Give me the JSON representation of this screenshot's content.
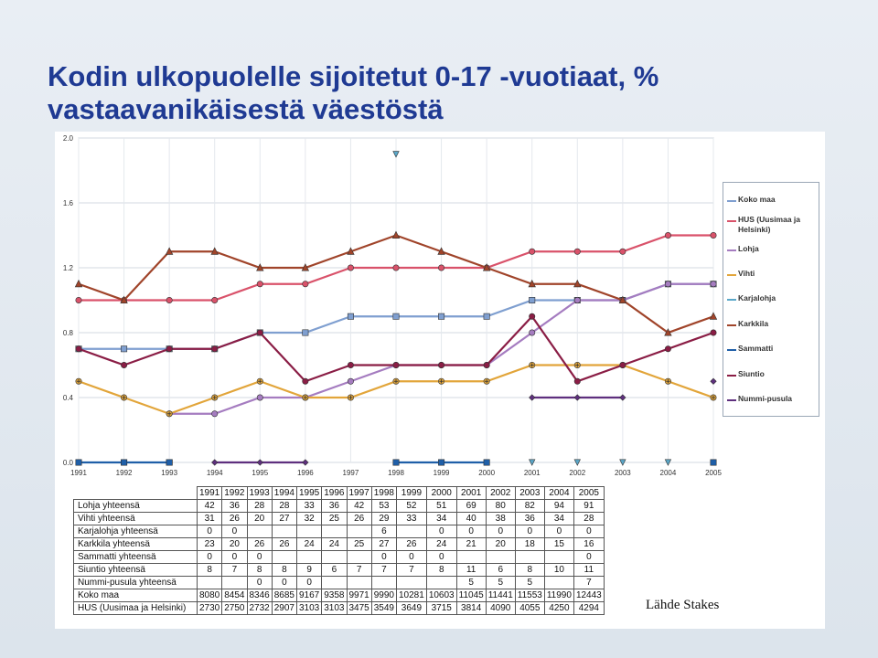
{
  "title": {
    "line1": "Kodin ulkopuolelle sijoitetut 0-17  -vuotiaat, %",
    "line2": "vastaavanikäisestä väestöstä"
  },
  "chart_data": {
    "type": "line",
    "x": [
      "1991",
      "1992",
      "1993",
      "1994",
      "1995",
      "1996",
      "1997",
      "1998",
      "1999",
      "2000",
      "2001",
      "2002",
      "2003",
      "2004",
      "2005"
    ],
    "y_ticks": [
      "0.0",
      "0.4",
      "0.8",
      "1.2",
      "1.6",
      "2.0"
    ],
    "ylim": [
      0,
      2.0
    ],
    "grid": true,
    "legend_position": "right",
    "series": [
      {
        "name": "Koko maa",
        "color": "#7f9fd0",
        "marker": "square",
        "values": [
          0.7,
          0.7,
          0.7,
          0.7,
          0.8,
          0.8,
          0.9,
          0.9,
          0.9,
          0.9,
          1.0,
          1.0,
          1.0,
          1.1,
          1.1
        ]
      },
      {
        "name": "HUS (Uusimaa ja Helsinki)",
        "color": "#d9526a",
        "marker": "circle",
        "values": [
          1.0,
          1.0,
          1.0,
          1.0,
          1.1,
          1.1,
          1.2,
          1.2,
          1.2,
          1.2,
          1.3,
          1.3,
          1.3,
          1.4,
          1.4
        ]
      },
      {
        "name": "Lohja",
        "color": "#a57cc0",
        "marker": "circle",
        "values": [
          null,
          null,
          0.3,
          0.3,
          0.4,
          0.4,
          0.5,
          0.6,
          0.6,
          0.6,
          0.8,
          1.0,
          1.0,
          1.1,
          1.1
        ]
      },
      {
        "name": "Vihti",
        "color": "#e2a53a",
        "marker": "plus",
        "values": [
          0.5,
          0.4,
          0.3,
          0.4,
          0.5,
          0.4,
          0.4,
          0.5,
          0.5,
          0.5,
          0.6,
          0.6,
          0.6,
          0.5,
          0.4
        ]
      },
      {
        "name": "Karjalohja",
        "color": "#5aa7c9",
        "marker": "tri-down",
        "values": [
          null,
          null,
          null,
          null,
          null,
          null,
          null,
          1.9,
          null,
          null,
          null,
          null,
          null,
          null,
          null
        ]
      },
      {
        "name": "Karkkila",
        "color": "#a0442a",
        "marker": "triangle",
        "values": [
          1.1,
          1.0,
          1.3,
          1.3,
          1.2,
          1.2,
          1.3,
          1.4,
          1.3,
          1.2,
          1.1,
          1.1,
          1.0,
          0.8,
          0.9
        ]
      },
      {
        "name": "Sammatti",
        "color": "#1f5fa8",
        "marker": "square",
        "values": [
          0.0,
          0.0,
          0.0,
          null,
          null,
          null,
          null,
          0.0,
          0.0,
          0.0,
          null,
          null,
          null,
          null,
          0.0
        ]
      },
      {
        "name": "Siuntio",
        "color": "#8a1d45",
        "marker": "circle",
        "values": [
          0.7,
          0.6,
          0.7,
          0.7,
          0.8,
          0.5,
          0.6,
          0.6,
          0.6,
          0.6,
          0.9,
          0.5,
          0.6,
          0.7,
          0.8
        ]
      },
      {
        "name": "Nummi-pusula",
        "color": "#5e2f7e",
        "marker": "diamond",
        "values": [
          null,
          null,
          null,
          0.0,
          0.0,
          0.0,
          null,
          null,
          null,
          null,
          0.4,
          0.4,
          0.4,
          null,
          0.5
        ]
      }
    ],
    "overlay_markers": [
      {
        "series": "Karjalohja",
        "x": [
          "2001",
          "2002",
          "2003",
          "2004"
        ],
        "y": 0.0,
        "marker": "tri-down",
        "color": "#5aa7c9"
      },
      {
        "series": "Sammatti",
        "x": [
          "1991",
          "1992",
          "1993"
        ],
        "y": 0.0,
        "marker": "square",
        "color": "#1f5fa8"
      }
    ]
  },
  "legend": [
    {
      "label": "Koko maa",
      "color": "#7f9fd0"
    },
    {
      "label": "HUS (Uusimaa ja Helsinki)",
      "color": "#d9526a"
    },
    {
      "label": "Lohja",
      "color": "#a57cc0"
    },
    {
      "label": "Vihti",
      "color": "#e2a53a"
    },
    {
      "label": "Karjalohja",
      "color": "#5aa7c9"
    },
    {
      "label": "Karkkila",
      "color": "#a0442a"
    },
    {
      "label": "Sammatti",
      "color": "#1f5fa8"
    },
    {
      "label": "Siuntio",
      "color": "#8a1d45"
    },
    {
      "label": "Nummi-pusula",
      "color": "#5e2f7e"
    }
  ],
  "table": {
    "years": [
      "1991",
      "1992",
      "1993",
      "1994",
      "1995",
      "1996",
      "1997",
      "1998",
      "1999",
      "2000",
      "2001",
      "2002",
      "2003",
      "2004",
      "2005"
    ],
    "rows": [
      {
        "label": "Lohja yhteensä",
        "cells": [
          "42",
          "36",
          "28",
          "28",
          "33",
          "36",
          "42",
          "53",
          "52",
          "51",
          "69",
          "80",
          "82",
          "94",
          "91"
        ]
      },
      {
        "label": "Vihti yhteensä",
        "cells": [
          "31",
          "26",
          "20",
          "27",
          "32",
          "25",
          "26",
          "29",
          "33",
          "34",
          "40",
          "38",
          "36",
          "34",
          "28"
        ]
      },
      {
        "label": "Karjalohja yhteensä",
        "cells": [
          "0",
          "0",
          "",
          "",
          "",
          "",
          "",
          "6",
          "",
          "0",
          "0",
          "0",
          "0",
          "0",
          "0"
        ]
      },
      {
        "label": "Karkkila yhteensä",
        "cells": [
          "23",
          "20",
          "26",
          "26",
          "24",
          "24",
          "25",
          "27",
          "26",
          "24",
          "21",
          "20",
          "18",
          "15",
          "16"
        ]
      },
      {
        "label": "Sammatti yhteensä",
        "cells": [
          "0",
          "0",
          "0",
          "",
          "",
          "",
          "",
          "0",
          "0",
          "0",
          "",
          "",
          "",
          "",
          "0"
        ]
      },
      {
        "label": "Siuntio yhteensä",
        "cells": [
          "8",
          "7",
          "8",
          "8",
          "9",
          "6",
          "7",
          "7",
          "7",
          "8",
          "11",
          "6",
          "8",
          "10",
          "11"
        ]
      },
      {
        "label": "Nummi-pusula yhteensä",
        "cells": [
          "",
          "",
          "0",
          "0",
          "0",
          "",
          "",
          "",
          "",
          "",
          "5",
          "5",
          "5",
          "",
          "7"
        ]
      },
      {
        "label": "Koko maa",
        "cells": [
          "8080",
          "8454",
          "8346",
          "8685",
          "9167",
          "9358",
          "9971",
          "9990",
          "10281",
          "10603",
          "11045",
          "11441",
          "11553",
          "11990",
          "12443"
        ]
      },
      {
        "label": "HUS (Uusimaa ja Helsinki)",
        "cells": [
          "2730",
          "2750",
          "2732",
          "2907",
          "3103",
          "3103",
          "3475",
          "3549",
          "3649",
          "3715",
          "3814",
          "4090",
          "4055",
          "4250",
          "4294"
        ]
      }
    ]
  },
  "source": "Lähde Stakes"
}
